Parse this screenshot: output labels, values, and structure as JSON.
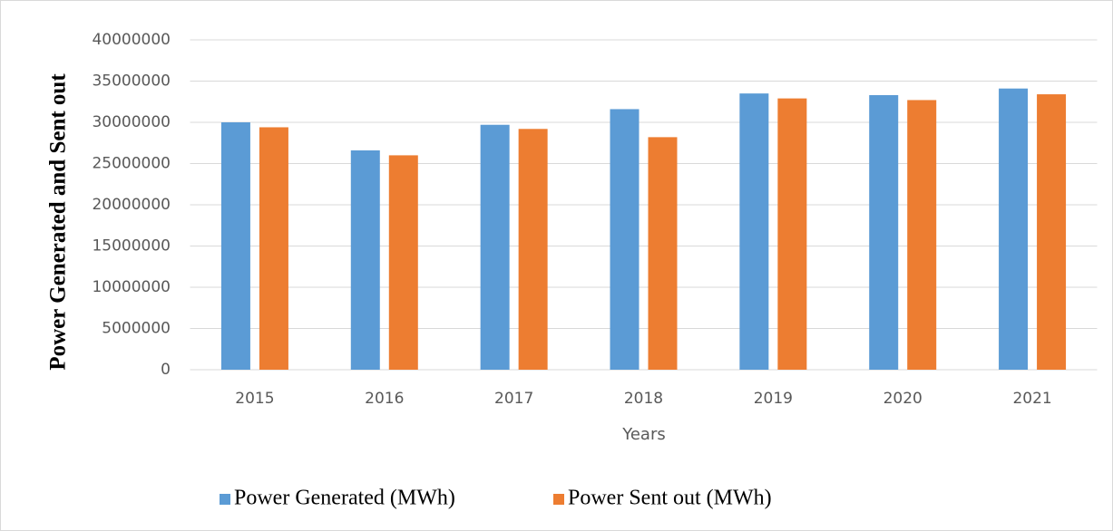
{
  "chart_data": {
    "type": "bar",
    "x_label": "Years",
    "y_label": "Power Generated and Sent out",
    "categories": [
      "2015",
      "2016",
      "2017",
      "2018",
      "2019",
      "2020",
      "2021"
    ],
    "series": [
      {
        "name": "Power Generated (MWh)",
        "color": "#5b9bd5",
        "values": [
          30000000,
          26600000,
          29700000,
          31600000,
          33500000,
          33300000,
          34100000
        ]
      },
      {
        "name": "Power Sent out (MWh)",
        "color": "#ed7d31",
        "values": [
          29400000,
          26000000,
          29200000,
          28200000,
          32900000,
          32700000,
          33400000
        ]
      }
    ],
    "ylim": [
      0,
      40000000
    ],
    "yticks": [
      0,
      5000000,
      10000000,
      15000000,
      20000000,
      25000000,
      30000000,
      35000000,
      40000000
    ],
    "grid": true,
    "legend": "bottom"
  }
}
